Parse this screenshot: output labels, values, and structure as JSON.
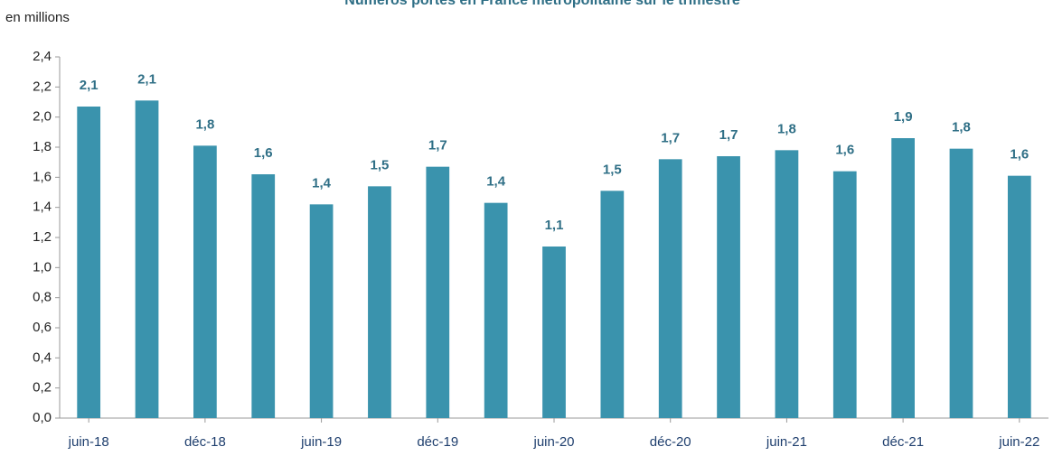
{
  "chart_data": {
    "type": "bar",
    "title": "Numéros portés en France métropolitaine sur le trimestre",
    "y_label": "en millions",
    "categories": [
      "juin-18",
      null,
      "déc-18",
      null,
      "juin-19",
      null,
      "déc-19",
      null,
      "juin-20",
      null,
      "déc-20",
      null,
      "juin-21",
      null,
      "déc-21",
      null,
      "juin-22"
    ],
    "values": [
      2.07,
      2.11,
      1.81,
      1.62,
      1.42,
      1.54,
      1.67,
      1.43,
      1.14,
      1.51,
      1.72,
      1.74,
      1.78,
      1.64,
      1.86,
      1.79,
      1.61
    ],
    "value_labels": [
      "2,1",
      "2,1",
      "1,8",
      "1,6",
      "1,4",
      "1,5",
      "1,7",
      "1,4",
      "1,1",
      "1,5",
      "1,7",
      "1,7",
      "1,8",
      "1,6",
      "1,9",
      "1,8",
      "1,6"
    ],
    "color": "#3a93ad",
    "ylim": [
      0,
      2.4
    ],
    "yticks": [
      {
        "value": 0,
        "label": "0,0"
      },
      {
        "value": 0.2,
        "label": "0,2"
      },
      {
        "value": 0.4,
        "label": "0,4"
      },
      {
        "value": 0.6,
        "label": "0,6"
      },
      {
        "value": 0.8,
        "label": "0,8"
      },
      {
        "value": 1.0,
        "label": "1,0"
      },
      {
        "value": 1.2,
        "label": "1,2"
      },
      {
        "value": 1.4,
        "label": "1,4"
      },
      {
        "value": 1.6,
        "label": "1,6"
      },
      {
        "value": 1.8,
        "label": "1,8"
      },
      {
        "value": 2.0,
        "label": "2,0"
      },
      {
        "value": 2.2,
        "label": "2,2"
      },
      {
        "value": 2.4,
        "label": "2,4"
      }
    ],
    "grid": false
  }
}
